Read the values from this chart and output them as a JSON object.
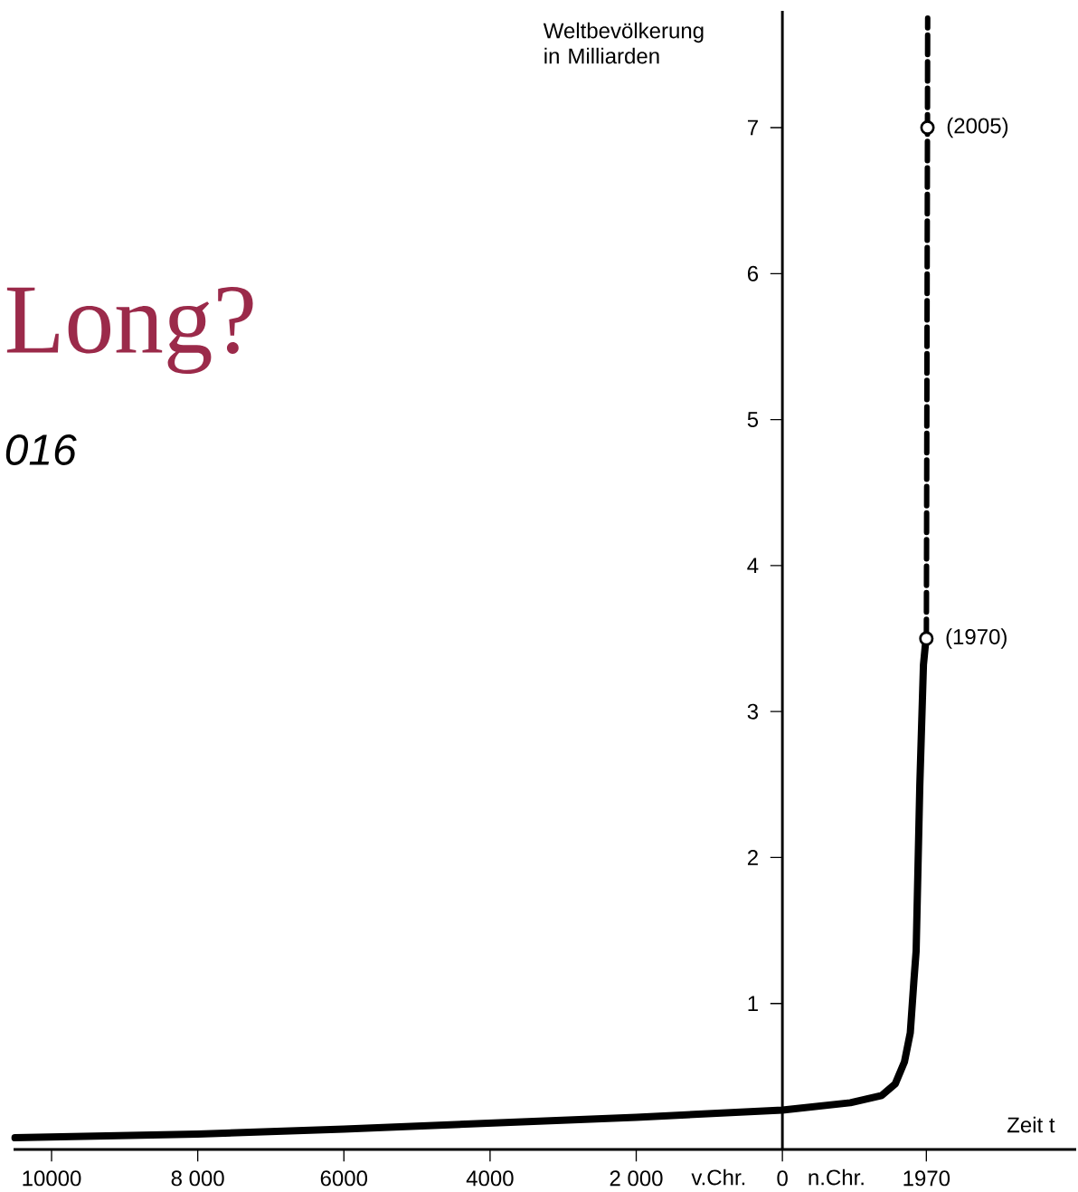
{
  "chart_data": {
    "type": "line",
    "xlabel": "Zeit t",
    "ylabel": "Weltbevölkerung in Milliarden",
    "xlim": [
      -10520,
      4020
    ],
    "ylim": [
      0,
      7.8
    ],
    "xticks": [
      {
        "value": -10000,
        "label": "10000"
      },
      {
        "value": -8000,
        "label": "8 000"
      },
      {
        "value": -6000,
        "label": "6000"
      },
      {
        "value": -4000,
        "label": "4000"
      },
      {
        "value": -2000,
        "label": "2 000"
      },
      {
        "value": 0,
        "label": "0"
      },
      1970
    ],
    "yticks": [
      1,
      2,
      3,
      4,
      5,
      6,
      7
    ],
    "series": [
      {
        "color": "#000000",
        "line_style": "solid",
        "x": [
          -10500,
          -8000,
          -6000,
          -4000,
          -2000,
          0,
          930,
          1360,
          1545,
          1670,
          1750,
          1800,
          1830,
          1880,
          1930,
          1955,
          1970
        ],
        "values": [
          0.08,
          0.105,
          0.14,
          0.18,
          0.22,
          0.27,
          0.32,
          0.37,
          0.45,
          0.6,
          0.8,
          1.16,
          1.36,
          2.49,
          3.32,
          3.45,
          3.5
        ]
      },
      {
        "color": "#000000",
        "line_style": "dashed",
        "x": [
          1970,
          1985,
          1988
        ],
        "values": [
          3.5,
          7,
          7.75
        ]
      },
      {
        "type": "scatter",
        "color": "#000000",
        "marker": "circle",
        "x": [
          1970,
          1985
        ],
        "values": [
          3.5,
          7
        ]
      }
    ],
    "annotations": [
      {
        "text": "(1970)",
        "x": 1970,
        "y": 3.5
      },
      {
        "text": "(2005)",
        "x": 1985,
        "y": 7
      },
      "v.Chr.",
      "n.Chr.",
      "Long?",
      "016"
    ]
  }
}
